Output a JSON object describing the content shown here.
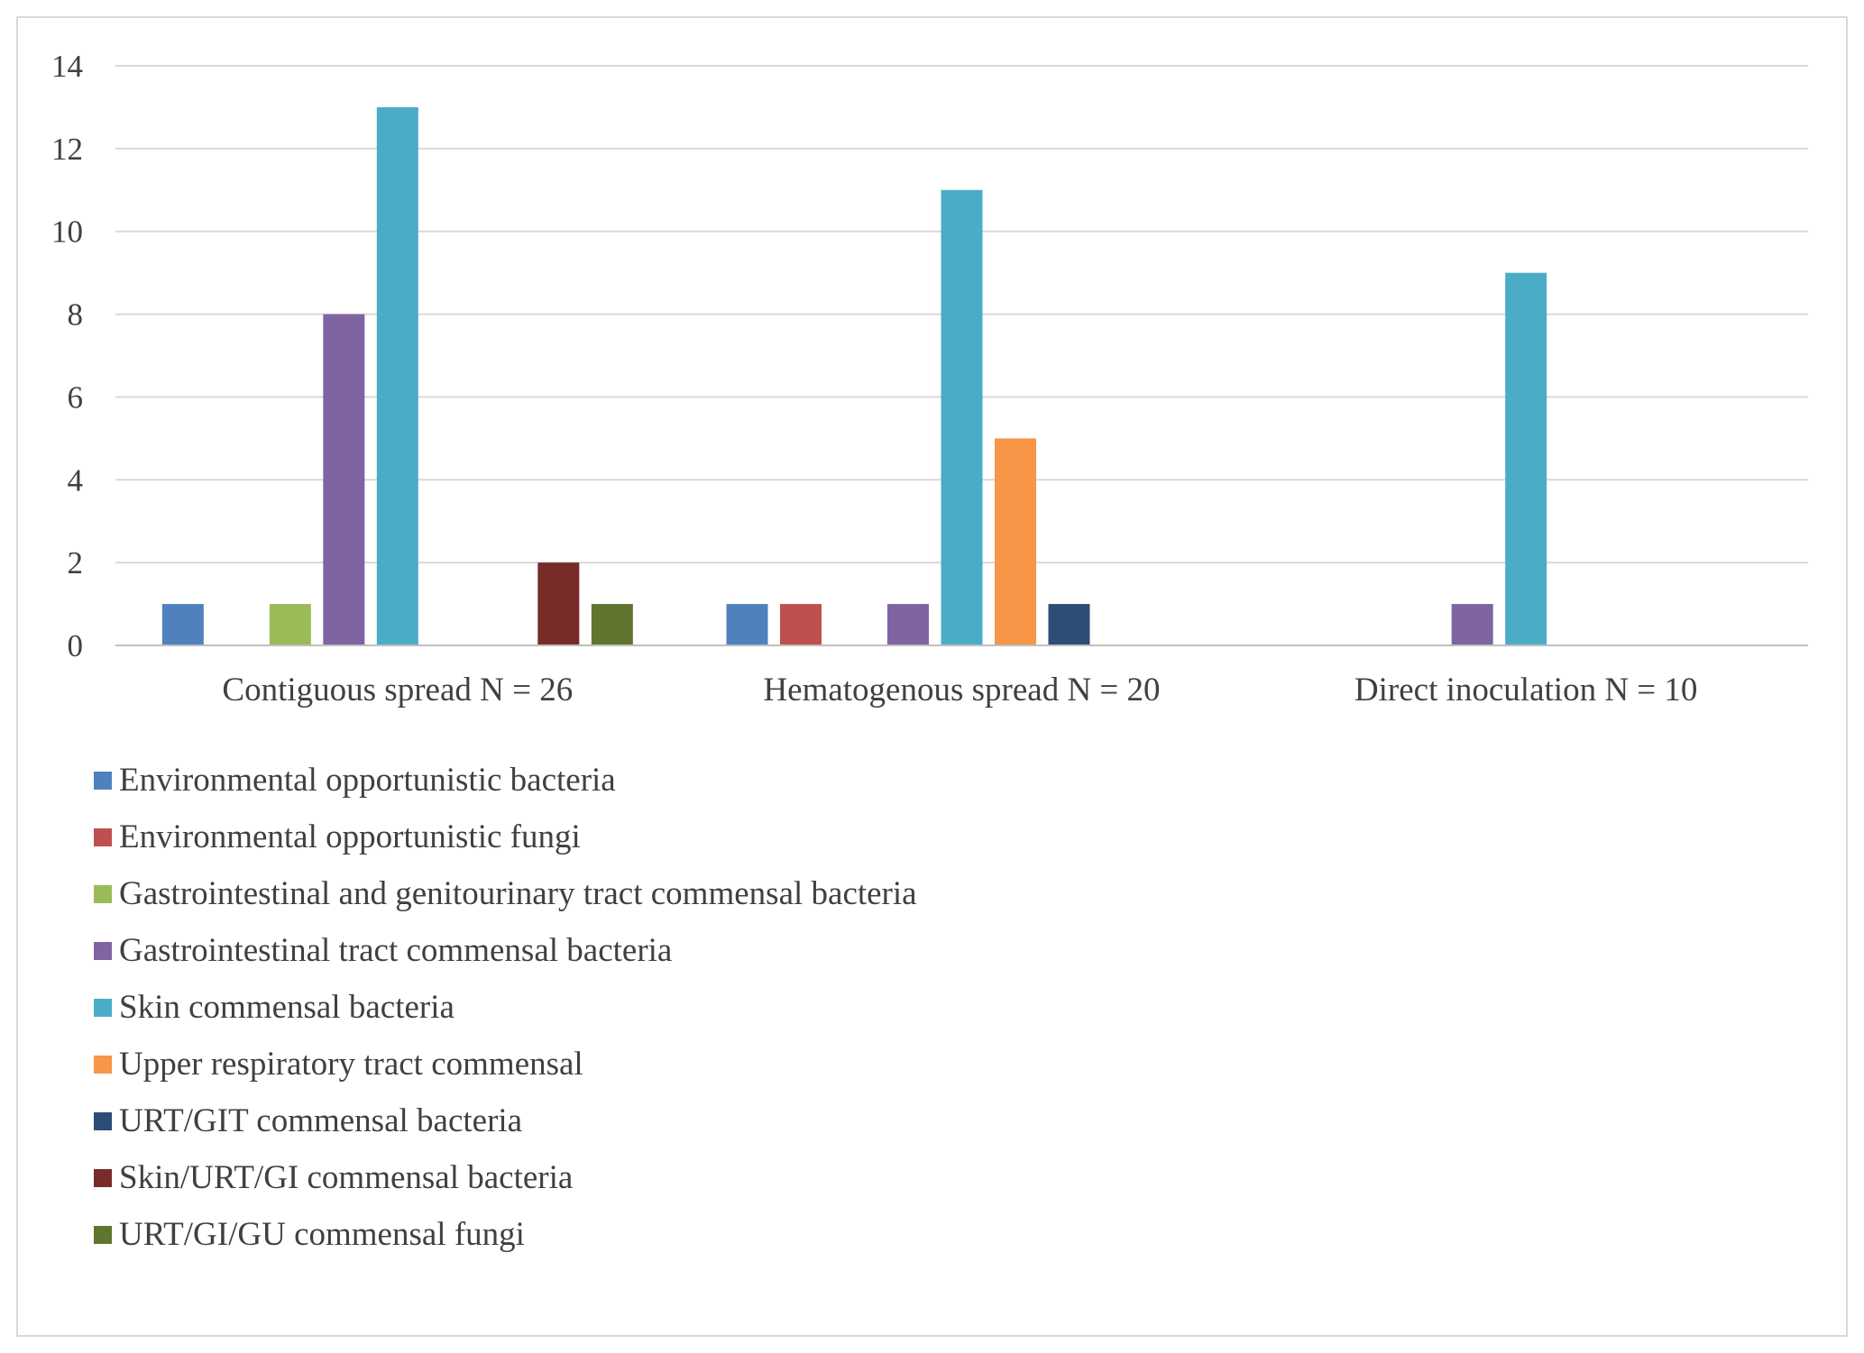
{
  "chart_data": {
    "type": "bar",
    "title": "",
    "xlabel": "",
    "ylabel": "",
    "ylim": [
      0,
      14
    ],
    "yticks": [
      0,
      2,
      4,
      6,
      8,
      10,
      12,
      14
    ],
    "grid": true,
    "legend_position": "bottom-left",
    "categories": [
      "Contiguous spread N = 26",
      "Hematogenous spread N = 20",
      "Direct inoculation N = 10"
    ],
    "series": [
      {
        "name": "Environmental opportunistic bacteria",
        "color": "#4F81BD",
        "values": [
          1,
          1,
          0
        ]
      },
      {
        "name": "Environmental opportunistic fungi",
        "color": "#C0504D",
        "values": [
          0,
          1,
          0
        ]
      },
      {
        "name": "Gastrointestinal and genitourinary tract commensal bacteria",
        "color": "#9BBB59",
        "values": [
          1,
          0,
          0
        ]
      },
      {
        "name": "Gastrointestinal tract commensal bacteria",
        "color": "#8064A2",
        "values": [
          8,
          1,
          1
        ]
      },
      {
        "name": "Skin commensal bacteria",
        "color": "#4BACC6",
        "values": [
          13,
          11,
          9
        ]
      },
      {
        "name": "Upper respiratory tract commensal",
        "color": "#F79646",
        "values": [
          0,
          5,
          0
        ]
      },
      {
        "name": "URT/GIT commensal bacteria",
        "color": "#2C4D75",
        "values": [
          0,
          1,
          0
        ]
      },
      {
        "name": "Skin/URT/GI commensal bacteria",
        "color": "#772C2A",
        "values": [
          2,
          0,
          0
        ]
      },
      {
        "name": "URT/GI/GU commensal fungi",
        "color": "#5F7530",
        "values": [
          1,
          0,
          0
        ]
      }
    ]
  }
}
